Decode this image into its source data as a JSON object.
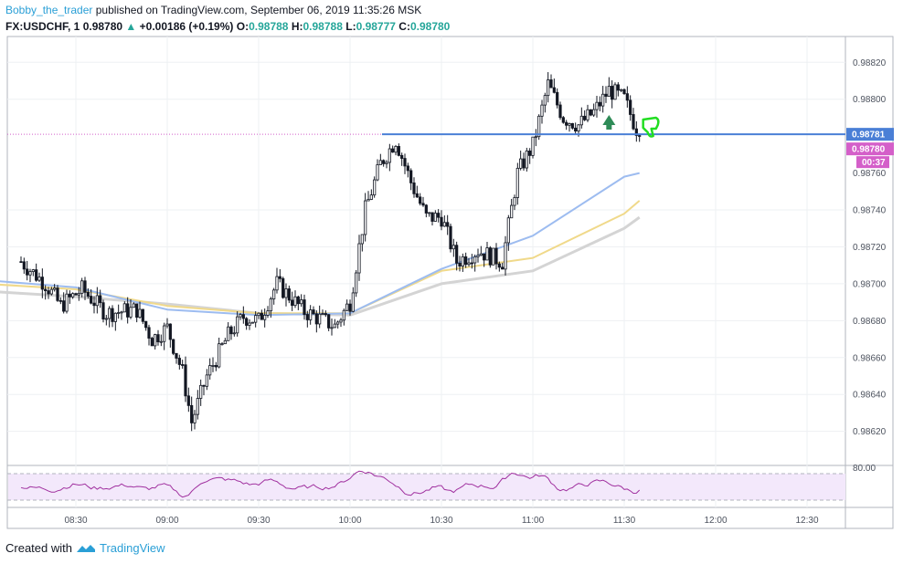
{
  "header": {
    "user": "Bobby_the_trader",
    "published": "published on TradingView.com, September 06, 2019 11:35:26 MSK",
    "symbol": "FX:USDCHF, 1",
    "last": "0.98780",
    "change_arrow": "▲",
    "change": "+0.00186 (+0.19%)",
    "o_label": "O:",
    "o_value": "0.98788",
    "h_label": "H:",
    "h_value": "0.98788",
    "l_label": "L:",
    "l_value": "0.98777",
    "c_label": "C:",
    "c_value": "0.98780"
  },
  "footer": {
    "created_with": "Created with",
    "brand": "TradingView",
    "logo_icon": "tradingview-logo-icon"
  },
  "colors": {
    "up": "#26a69a",
    "blue_line": "#4a7fd6",
    "price_badge": "#d45fc9",
    "ma_fast": "#9dbcf0",
    "ma_mid": "#f0d98a",
    "ma_slow": "#d4d4d4",
    "rsi": "#a0309f",
    "rsi_bg": "#f3e8fb"
  },
  "chart_data": {
    "type": "candlestick",
    "x_ticks": [
      "08:30",
      "09:00",
      "09:30",
      "10:00",
      "10:30",
      "11:00",
      "11:30",
      "12:00",
      "12:30"
    ],
    "y_ticks": [
      "0.98820",
      "0.98800",
      "0.98740",
      "0.98720",
      "0.98700",
      "0.98680",
      "0.98660",
      "0.98640",
      "0.98620"
    ],
    "ylim": [
      0.98604,
      0.98833
    ],
    "price_labels": {
      "line": "0.98781",
      "last": "0.98780",
      "countdown": "00:37",
      "hidden_tick": "0.98760"
    },
    "close_path": [
      [
        "08:12",
        0.98712
      ],
      [
        "08:20",
        0.987
      ],
      [
        "08:25",
        0.98688
      ],
      [
        "08:32",
        0.98697
      ],
      [
        "08:40",
        0.98684
      ],
      [
        "08:50",
        0.98686
      ],
      [
        "08:55",
        0.9867
      ],
      [
        "09:00",
        0.98676
      ],
      [
        "09:05",
        0.98652
      ],
      [
        "09:08",
        0.98625
      ],
      [
        "09:13",
        0.9865
      ],
      [
        "09:20",
        0.98672
      ],
      [
        "09:25",
        0.98682
      ],
      [
        "09:30",
        0.9868
      ],
      [
        "09:36",
        0.987
      ],
      [
        "09:45",
        0.98685
      ],
      [
        "09:55",
        0.98677
      ],
      [
        "10:00",
        0.9869
      ],
      [
        "10:05",
        0.9874
      ],
      [
        "10:10",
        0.98765
      ],
      [
        "10:15",
        0.98778
      ],
      [
        "10:20",
        0.98755
      ],
      [
        "10:25",
        0.98736
      ],
      [
        "10:30",
        0.98736
      ],
      [
        "10:35",
        0.98712
      ],
      [
        "10:42",
        0.98718
      ],
      [
        "10:50",
        0.98712
      ],
      [
        "10:55",
        0.9876
      ],
      [
        "11:00",
        0.98775
      ],
      [
        "11:05",
        0.98808
      ],
      [
        "11:10",
        0.9879
      ],
      [
        "11:15",
        0.98786
      ],
      [
        "11:20",
        0.98793
      ],
      [
        "11:25",
        0.98805
      ],
      [
        "11:30",
        0.988
      ],
      [
        "11:35",
        0.9878
      ]
    ],
    "ma_fast": [
      [
        0.98702,
        "08:00"
      ],
      [
        0.98698,
        "08:30"
      ],
      [
        0.98686,
        "09:00"
      ],
      [
        0.98683,
        "09:30"
      ],
      [
        0.98684,
        "10:00"
      ],
      [
        0.98708,
        "10:30"
      ],
      [
        0.98726,
        "11:00"
      ],
      [
        0.98758,
        "11:30"
      ],
      [
        0.9876,
        "11:35"
      ]
    ],
    "ma_mid": [
      [
        0.987,
        "08:00"
      ],
      [
        0.98697,
        "08:30"
      ],
      [
        0.98688,
        "09:00"
      ],
      [
        0.98684,
        "09:30"
      ],
      [
        0.98684,
        "10:00"
      ],
      [
        0.98707,
        "10:30"
      ],
      [
        0.98714,
        "11:00"
      ],
      [
        0.98738,
        "11:30"
      ],
      [
        0.98745,
        "11:35"
      ]
    ],
    "ma_slow": [
      [
        0.98696,
        "08:00"
      ],
      [
        0.98693,
        "08:30"
      ],
      [
        0.98689,
        "09:00"
      ],
      [
        0.98684,
        "09:30"
      ],
      [
        0.98683,
        "10:00"
      ],
      [
        0.987,
        "10:30"
      ],
      [
        0.98707,
        "11:00"
      ],
      [
        0.9873,
        "11:30"
      ],
      [
        0.98736,
        "11:35"
      ]
    ],
    "rsi_label": "80.00",
    "grid": true
  }
}
